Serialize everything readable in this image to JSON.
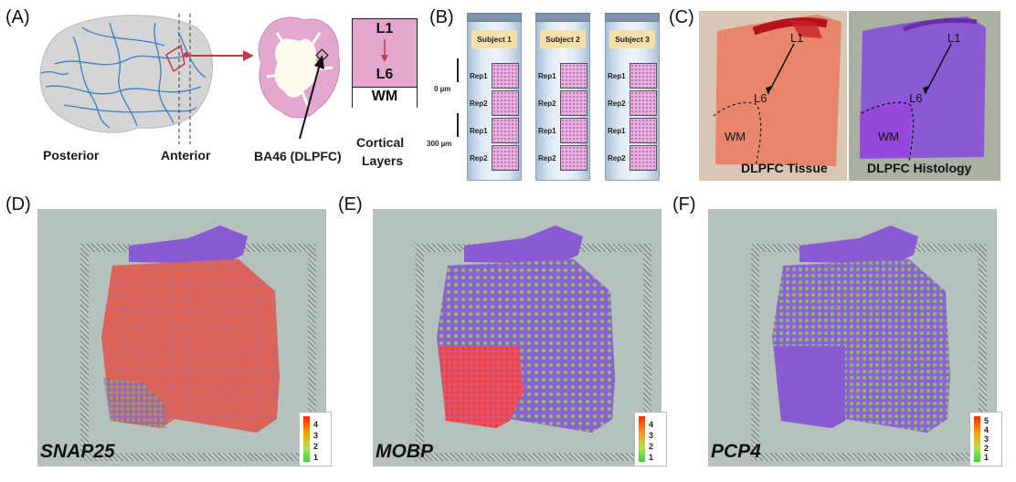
{
  "panels": {
    "a": {
      "label": "(A)",
      "posterior": "Posterior",
      "anterior": "Anterior",
      "ba46": "BA46 (DLPFC)",
      "cortical": "Cortical",
      "layers": "Layers",
      "l1": "L1",
      "l6": "L6",
      "wm": "WM"
    },
    "b": {
      "label": "(B)",
      "subjects": [
        "Subject 1",
        "Subject 2",
        "Subject 3"
      ],
      "reps": [
        "Rep1",
        "Rep2",
        "Rep1",
        "Rep2"
      ],
      "scale_0": "0 µm",
      "scale_300": "300 µm"
    },
    "c": {
      "label": "(C)",
      "tissue_title": "DLPFC Tissue",
      "histology_title": "DLPFC Histology",
      "l1": "L1",
      "l6": "L6",
      "wm": "WM"
    },
    "d": {
      "label": "(D)",
      "gene": "SNAP25",
      "ticks": [
        "4",
        "3",
        "2",
        "1"
      ]
    },
    "e": {
      "label": "(E)",
      "gene": "MOBP",
      "ticks": [
        "4",
        "3",
        "2",
        "1"
      ]
    },
    "f": {
      "label": "(F)",
      "gene": "PCP4",
      "ticks": [
        "5",
        "4",
        "3",
        "2",
        "1"
      ]
    }
  },
  "colors": {
    "brain": "#cfcfcf",
    "vessel": "#3a7fc3",
    "arrow": "#c23a4b",
    "layer_box": "#e3a7cf",
    "wm_box": "#ffffff",
    "slide_label": "#f4dfaa",
    "tissue": "#e8866b",
    "histology": "#8a5ad2"
  }
}
